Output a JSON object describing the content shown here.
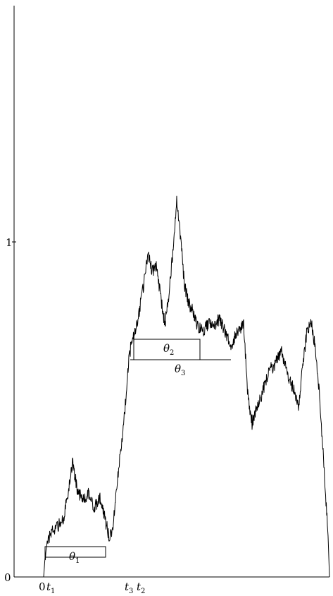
{
  "axis": {
    "y_ticks": [
      {
        "label": "0",
        "value": 0
      },
      {
        "label": "1",
        "value": 1
      }
    ]
  },
  "excursions": [
    {
      "symbol": "θ",
      "index": "1"
    },
    {
      "symbol": "θ",
      "index": "2"
    },
    {
      "symbol": "θ",
      "index": "3"
    }
  ],
  "time_marks": [
    {
      "label": "0",
      "symbol": "",
      "index": ""
    },
    {
      "label": "",
      "symbol": "t",
      "index": "1"
    },
    {
      "label": "",
      "symbol": "t",
      "index": "3"
    },
    {
      "label": "",
      "symbol": "t",
      "index": "2"
    }
  ]
}
